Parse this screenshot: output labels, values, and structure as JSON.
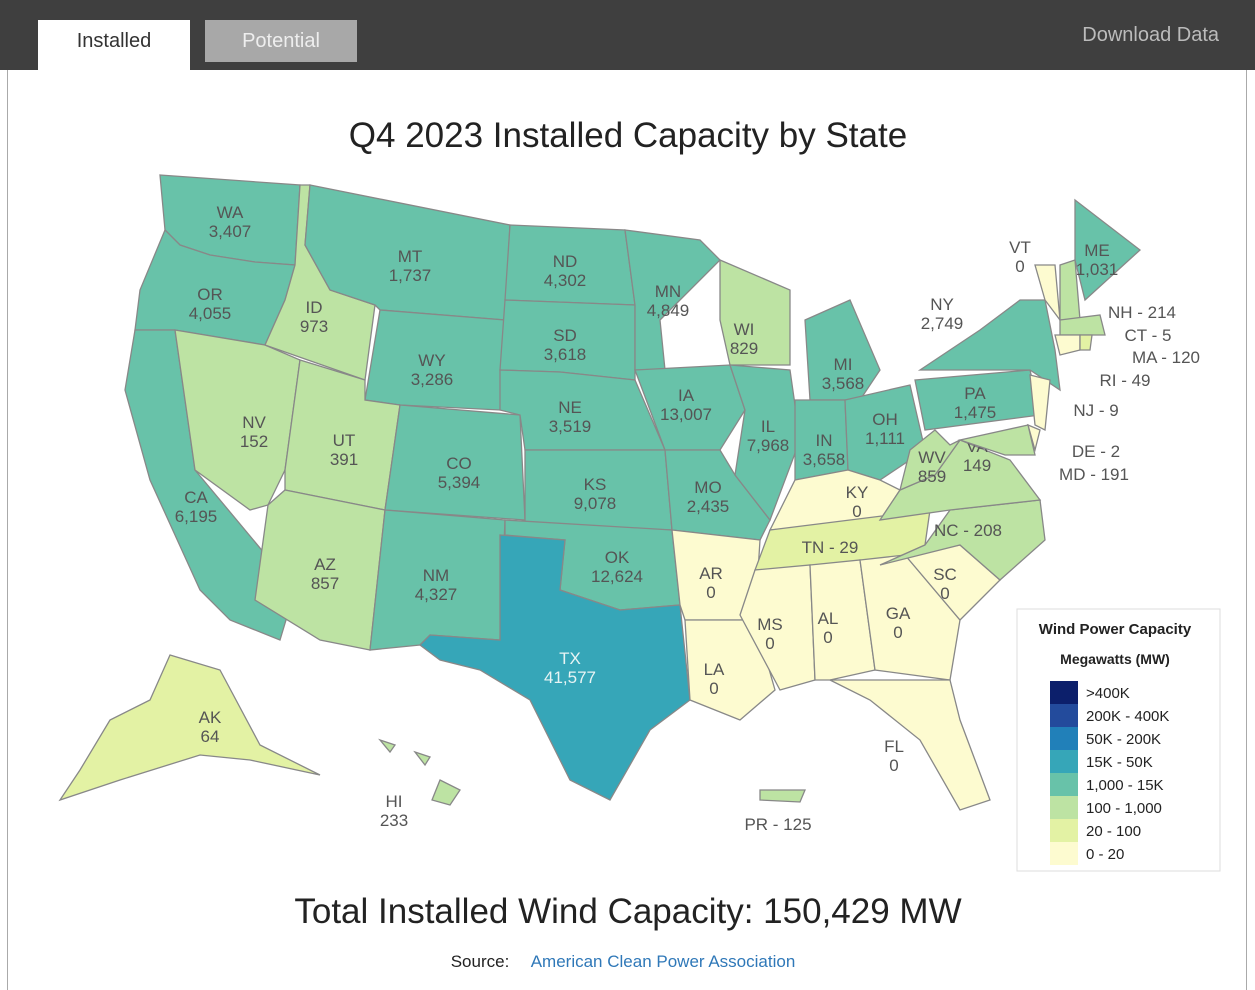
{
  "header": {
    "tabs": [
      "Installed",
      "Potential"
    ],
    "download": "Download Data"
  },
  "title": "Q4 2023 Installed Capacity by State",
  "states": [
    {
      "name": "WA",
      "value": "3,407",
      "color": "#68c2a9"
    },
    {
      "name": "OR",
      "value": "4,055",
      "color": "#68c2a9"
    },
    {
      "name": "CA",
      "value": "6,195",
      "color": "#68c2a9"
    },
    {
      "name": "NV",
      "value": "152",
      "color": "#bde3a3"
    },
    {
      "name": "ID",
      "value": "973",
      "color": "#bde3a3"
    },
    {
      "name": "MT",
      "value": "1,737",
      "color": "#68c2a9"
    },
    {
      "name": "WY",
      "value": "3,286",
      "color": "#68c2a9"
    },
    {
      "name": "UT",
      "value": "391",
      "color": "#bde3a3"
    },
    {
      "name": "AZ",
      "value": "857",
      "color": "#bde3a3"
    },
    {
      "name": "CO",
      "value": "5,394",
      "color": "#68c2a9"
    },
    {
      "name": "NM",
      "value": "4,327",
      "color": "#68c2a9"
    },
    {
      "name": "ND",
      "value": "4,302",
      "color": "#68c2a9"
    },
    {
      "name": "SD",
      "value": "3,618",
      "color": "#68c2a9"
    },
    {
      "name": "NE",
      "value": "3,519",
      "color": "#68c2a9"
    },
    {
      "name": "KS",
      "value": "9,078",
      "color": "#68c2a9"
    },
    {
      "name": "OK",
      "value": "12,624",
      "color": "#68c2a9"
    },
    {
      "name": "TX",
      "value": "41,577",
      "color": "#36a6b8"
    },
    {
      "name": "MN",
      "value": "4,849",
      "color": "#68c2a9"
    },
    {
      "name": "IA",
      "value": "13,007",
      "color": "#68c2a9"
    },
    {
      "name": "MO",
      "value": "2,435",
      "color": "#68c2a9"
    },
    {
      "name": "AR",
      "value": "0",
      "color": "#fdfbd0"
    },
    {
      "name": "LA",
      "value": "0",
      "color": "#fdfbd0"
    },
    {
      "name": "WI",
      "value": "829",
      "color": "#bde3a3"
    },
    {
      "name": "IL",
      "value": "7,968",
      "color": "#68c2a9"
    },
    {
      "name": "MI",
      "value": "3,568",
      "color": "#68c2a9"
    },
    {
      "name": "IN",
      "value": "3,658",
      "color": "#68c2a9"
    },
    {
      "name": "OH",
      "value": "1,111",
      "color": "#68c2a9"
    },
    {
      "name": "KY",
      "value": "0",
      "color": "#fdfbd0"
    },
    {
      "label": "TN - 29",
      "color": "#e3f2a4"
    },
    {
      "name": "MS",
      "value": "0",
      "color": "#fdfbd0"
    },
    {
      "name": "AL",
      "value": "0",
      "color": "#fdfbd0"
    },
    {
      "name": "GA",
      "value": "0",
      "color": "#fdfbd0"
    },
    {
      "name": "FL",
      "value": "0",
      "color": "#fdfbd0"
    },
    {
      "name": "SC",
      "value": "0",
      "color": "#fdfbd0"
    },
    {
      "label": "NC - 208",
      "color": "#bde3a3"
    },
    {
      "name": "VA",
      "value": "149",
      "color": "#bde3a3"
    },
    {
      "name": "WV",
      "value": "859",
      "color": "#bde3a3"
    },
    {
      "name": "PA",
      "value": "1,475",
      "color": "#68c2a9"
    },
    {
      "name": "NY",
      "value": "2,749",
      "color": "#68c2a9"
    },
    {
      "name": "VT",
      "value": "0",
      "color": "#fdfbd0"
    },
    {
      "label": "NH - 214",
      "color": "#bde3a3"
    },
    {
      "name": "ME",
      "value": "1,031",
      "color": "#68c2a9"
    },
    {
      "label": "MA - 120",
      "color": "#bde3a3"
    },
    {
      "label": "CT - 5",
      "color": "#fdfbd0"
    },
    {
      "label": "RI - 49",
      "color": "#e3f2a4"
    },
    {
      "label": "NJ - 9",
      "color": "#fdfbd0"
    },
    {
      "label": "DE - 2",
      "color": "#fdfbd0"
    },
    {
      "label": "MD - 191",
      "color": "#bde3a3"
    },
    {
      "name": "AK",
      "value": "64",
      "color": "#e3f2a4"
    },
    {
      "name": "HI",
      "value": "233",
      "color": "#bde3a3"
    },
    {
      "label": "PR - 125",
      "color": "#bde3a3"
    }
  ],
  "legend": {
    "title": "Wind Power Capacity",
    "subtitle": "Megawatts (MW)",
    "bins": [
      {
        "label": ">400K",
        "color": "#0c1f6b"
      },
      {
        "label": "200K - 400K",
        "color": "#234b9c"
      },
      {
        "label": "50K - 200K",
        "color": "#2180b9"
      },
      {
        "label": "15K - 50K",
        "color": "#36a6b8"
      },
      {
        "label": "1,000 - 15K",
        "color": "#68c2a9"
      },
      {
        "label": "100 - 1,000",
        "color": "#bde3a3"
      },
      {
        "label": "20 - 100",
        "color": "#e3f2a4"
      },
      {
        "label": "0 - 20",
        "color": "#fdfbd0"
      }
    ]
  },
  "total": "Total Installed Wind Capacity: 150,429 MW",
  "source": {
    "label": "Source:",
    "link": "American Clean Power Association"
  }
}
